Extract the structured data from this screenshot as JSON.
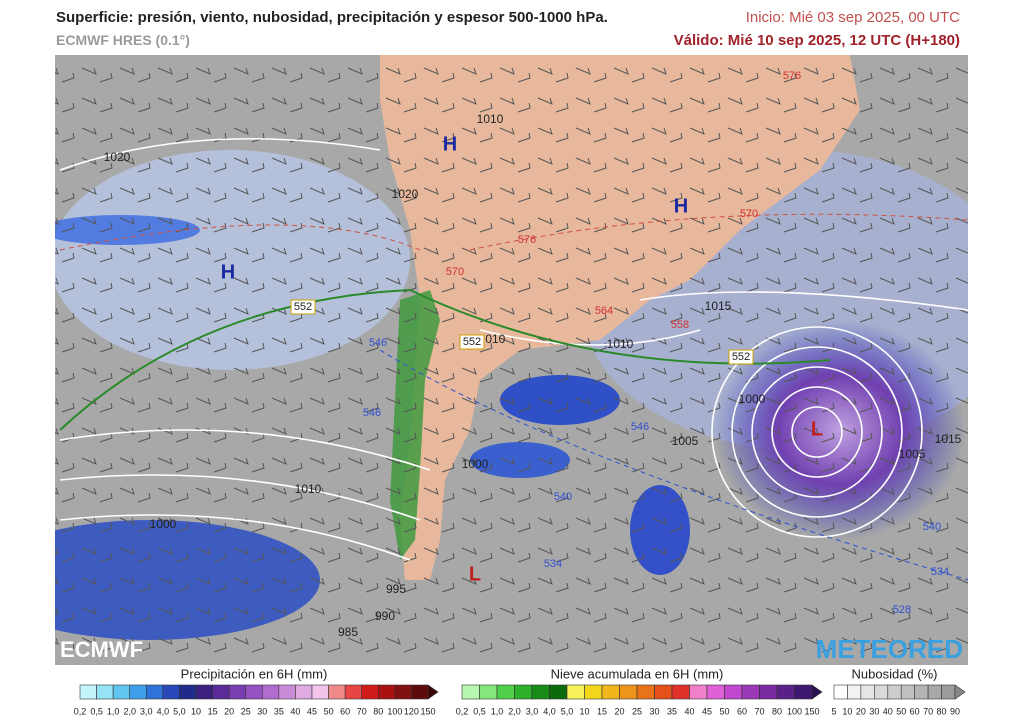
{
  "header": {
    "title": "Superficie: presión, viento, nubosidad, precipitación y espesor 500-1000 hPa.",
    "model": "ECMWF HRES (0.1°)",
    "init": "Inicio: Mié 03 sep 2025, 00 UTC",
    "valid": "Válido: Mié 10 sep 2025, 12 UTC (H+180)"
  },
  "map": {
    "centers": [
      "H",
      "H",
      "H",
      "L",
      "L"
    ],
    "isobar_labels": [
      "1020",
      "1020",
      "1010",
      "1015",
      "1010",
      "1005",
      "1000",
      "1010",
      "1000",
      "995",
      "990",
      "985",
      "1005",
      "1010",
      "1015",
      "1000"
    ],
    "thickness_labels": [
      "552",
      "552",
      "552",
      "546",
      "546",
      "540",
      "534",
      "528",
      "534",
      "540",
      "546",
      "558",
      "564",
      "570",
      "570",
      "576",
      "576"
    ],
    "logos": [
      "ECMWF",
      "METEORED"
    ]
  },
  "legends": [
    {
      "title": "Precipitación en 6H (mm)",
      "colors": [
        "#c4f5fa",
        "#94e4f6",
        "#62c6f1",
        "#3da0e9",
        "#2f72d9",
        "#2947b9",
        "#1f2b8b",
        "#3c2080",
        "#5b2b9a",
        "#7a3eb2",
        "#9652c2",
        "#b06cd1",
        "#c98cd9",
        "#e0aae2",
        "#f3c3ea",
        "#f08a8a",
        "#e84545",
        "#d01b1b",
        "#aa1212",
        "#821010",
        "#5c0a0a"
      ],
      "ticks": [
        "0,2",
        "0,5",
        "1,0",
        "2,0",
        "3,0",
        "4,0",
        "5,0",
        "10",
        "15",
        "20",
        "25",
        "30",
        "35",
        "40",
        "45",
        "50",
        "60",
        "70",
        "80",
        "100",
        "120",
        "150"
      ]
    },
    {
      "title": "Nieve acumulada en 6H (mm)",
      "colors": [
        "#b8f7b0",
        "#86e87c",
        "#52cf4a",
        "#2db02a",
        "#178a17",
        "#0b6a0b",
        "#f8f25a",
        "#f2d71d",
        "#f0b61b",
        "#ee941a",
        "#e9731a",
        "#e5501b",
        "#e0302a",
        "#f080c8",
        "#e060d8",
        "#c048d0",
        "#9a38b8",
        "#7a2aa0",
        "#5a2088",
        "#3c1870"
      ],
      "ticks": [
        "0,2",
        "0,5",
        "1,0",
        "2,0",
        "3,0",
        "4,0",
        "5,0",
        "10",
        "15",
        "20",
        "25",
        "30",
        "35",
        "40",
        "45",
        "50",
        "60",
        "70",
        "80",
        "100",
        "150"
      ]
    },
    {
      "title": "Nubosidad (%)",
      "colors": [
        "#ffffff",
        "#f2f2f2",
        "#e6e6e6",
        "#d9d9d9",
        "#cdcdcd",
        "#c0c0c0",
        "#b4b4b4",
        "#a8a8a8",
        "#9c9c9c"
      ],
      "ticks": [
        "5",
        "10",
        "20",
        "30",
        "40",
        "50",
        "60",
        "70",
        "80",
        "90"
      ]
    }
  ]
}
